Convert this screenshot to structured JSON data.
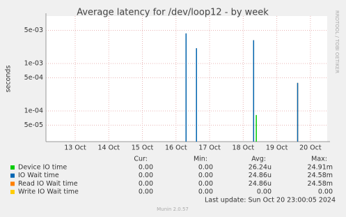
{
  "chart_data": {
    "type": "spike",
    "title": "Average latency for /dev/loop12 - by week",
    "y_label": "seconds",
    "side_label": "RRDTOOL / TOBI OETIKER",
    "log_scale": true,
    "grid": true,
    "xlim": [
      12.63,
      21.0
    ],
    "xticks": [
      {
        "value": 13.5,
        "label": "13 Oct"
      },
      {
        "value": 14.5,
        "label": "14 Oct"
      },
      {
        "value": 15.5,
        "label": "15 Oct"
      },
      {
        "value": 16.5,
        "label": "16 Oct"
      },
      {
        "value": 17.5,
        "label": "17 Oct"
      },
      {
        "value": 18.5,
        "label": "18 Oct"
      },
      {
        "value": 19.5,
        "label": "19 Oct"
      },
      {
        "value": 20.5,
        "label": "20 Oct"
      }
    ],
    "ylim": [
      2.25e-05,
      0.01
    ],
    "yticks": [
      {
        "value": 0.005,
        "label": "5e-03"
      },
      {
        "value": 0.001,
        "label": "1e-03"
      },
      {
        "value": 0.0005,
        "label": "5e-04"
      },
      {
        "value": 0.0001,
        "label": "1e-04"
      },
      {
        "value": 5e-05,
        "label": "5e-05"
      }
    ],
    "stat_headers": [
      "Cur:",
      "Min:",
      "Avg:",
      "Max:"
    ],
    "series": [
      {
        "name": "Device IO time",
        "color": "#00cc00",
        "x": [
          18.89
        ],
        "values": [
          8.2e-05
        ],
        "stats": [
          "0.00",
          "0.00",
          "26.24u",
          "24.91m"
        ]
      },
      {
        "name": "IO Wait time",
        "color": "#0066b3",
        "x": [
          16.8,
          17.11,
          18.81,
          20.12
        ],
        "values": [
          0.0043,
          0.0021,
          0.0031,
          0.00039
        ],
        "stats": [
          "0.00",
          "0.00",
          "24.86u",
          "24.58m"
        ]
      },
      {
        "name": "Read IO Wait time",
        "color": "#ff8000",
        "x": [
          16.8,
          17.11,
          18.81,
          20.12
        ],
        "values": [
          0.0043,
          0.0021,
          0.0031,
          0.00039
        ],
        "stats": [
          "0.00",
          "0.00",
          "24.86u",
          "24.58m"
        ]
      },
      {
        "name": "Write IO Wait time",
        "color": "#ffcc00",
        "x": [],
        "values": [],
        "stats": [
          "0.00",
          "0.00",
          "0.00",
          "0.00"
        ]
      }
    ],
    "last_update": "Last update: Sun Oct 20 23:00:05 2024",
    "footer": "Munin 2.0.57"
  }
}
